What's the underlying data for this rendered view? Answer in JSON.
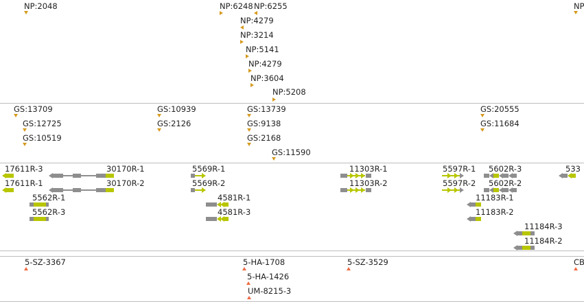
{
  "colors": {
    "orange": "#d69a1e",
    "red": "#ee6a43",
    "grey": "#8e8e8e",
    "lime": "#b8c600",
    "divider": "#bdbdbd"
  },
  "tracks": {
    "np": {
      "features": [
        {
          "label": "NP:2048"
        },
        {
          "label": "NP:6248"
        },
        {
          "label": "NP:6255"
        },
        {
          "label": "NP:4279"
        },
        {
          "label": "NP:3214"
        },
        {
          "label": "NP:5141"
        },
        {
          "label": "NP:4279"
        },
        {
          "label": "NP:3604"
        },
        {
          "label": "NP:5208"
        },
        {
          "label": "NP"
        }
      ]
    },
    "gs": {
      "features": [
        {
          "label": "GS:13709"
        },
        {
          "label": "GS:12725"
        },
        {
          "label": "GS:10519"
        },
        {
          "label": "GS:10939"
        },
        {
          "label": "GS:2126"
        },
        {
          "label": "GS:13739"
        },
        {
          "label": "GS:9138"
        },
        {
          "label": "GS:2168"
        },
        {
          "label": "GS:11590"
        },
        {
          "label": "GS:20555"
        },
        {
          "label": "GS:11684"
        }
      ]
    },
    "genes": {
      "features": [
        {
          "label": "17611R-3"
        },
        {
          "label": "17611R-1"
        },
        {
          "label": "30170R-1"
        },
        {
          "label": "30170R-2"
        },
        {
          "label": "5562R-1"
        },
        {
          "label": "5562R-3"
        },
        {
          "label": "5569R-1"
        },
        {
          "label": "5569R-2"
        },
        {
          "label": "4581R-1"
        },
        {
          "label": "4581R-3"
        },
        {
          "label": "11303R-1"
        },
        {
          "label": "11303R-2"
        },
        {
          "label": "5597R-1"
        },
        {
          "label": "5597R-2"
        },
        {
          "label": "5602R-3"
        },
        {
          "label": "5602R-2"
        },
        {
          "label": "11183R-1"
        },
        {
          "label": "11183R-2"
        },
        {
          "label": "11184R-3"
        },
        {
          "label": "11184R-2"
        },
        {
          "label": "533"
        }
      ]
    },
    "markers": {
      "features": [
        {
          "label": "5-SZ-3367"
        },
        {
          "label": "5-HA-1708"
        },
        {
          "label": "5-HA-1426"
        },
        {
          "label": "UM-8215-3"
        },
        {
          "label": "5-SZ-3529"
        },
        {
          "label": "CB"
        }
      ]
    }
  }
}
